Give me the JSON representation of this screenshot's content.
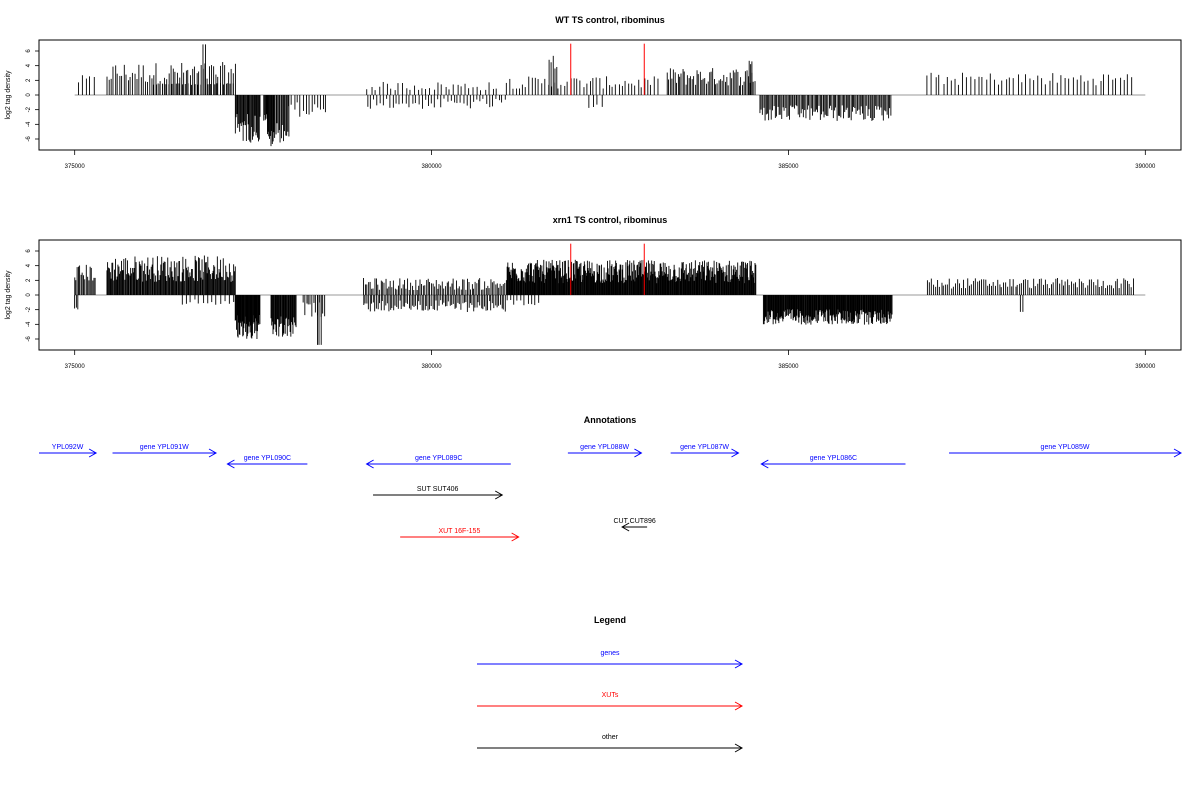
{
  "chart_data": [
    {
      "type": "bar",
      "title": "WT TS control, ribominus",
      "xlabel": "",
      "ylabel": "log2 tag density",
      "xlim": [
        374500,
        390500
      ],
      "ylim": [
        -7.5,
        7.5
      ],
      "x_ticks": [
        375000,
        380000,
        385000,
        390000
      ],
      "y_ticks": [
        -6,
        -4,
        -2,
        0,
        2,
        4,
        6
      ],
      "tick_labels_x": [
        "375000",
        "380000",
        "385000",
        "390000"
      ],
      "tick_labels_y": [
        "-6",
        "-4",
        "-2",
        "0",
        "2",
        "4",
        "6"
      ],
      "baseline_range": [
        375000,
        390000
      ],
      "grid": false,
      "markers": {
        "color": "#ff0000",
        "x": [
          381950,
          382980
        ],
        "height": 7
      },
      "segments": [
        {
          "start": 375050,
          "end": 375300,
          "sign": 1,
          "step": 55,
          "amp": 2.0,
          "sp": 0.35
        },
        {
          "start": 375450,
          "end": 377250,
          "sign": 1,
          "step": 30,
          "amp": 3.0,
          "sp": 0.5
        },
        {
          "start": 376100,
          "end": 377250,
          "sign": 1,
          "step": 45,
          "amp": 1.5,
          "sp": 0.08
        },
        {
          "start": 376800,
          "end": 376830,
          "sign": 1,
          "step": 30,
          "amp": 6.9,
          "sp": 0.0
        },
        {
          "start": 377250,
          "end": 377600,
          "sign": -1,
          "step": 12,
          "amp": 4.5,
          "sp": 0.45
        },
        {
          "start": 377650,
          "end": 377700,
          "sign": -1,
          "step": 10,
          "amp": 3.0,
          "sp": 0.2
        },
        {
          "start": 377700,
          "end": 377800,
          "sign": -1,
          "step": 10,
          "amp": 6.0,
          "sp": 0.2
        },
        {
          "start": 377820,
          "end": 378000,
          "sign": -1,
          "step": 15,
          "amp": 5.0,
          "sp": 0.3
        },
        {
          "start": 378000,
          "end": 378550,
          "sign": -1,
          "step": 40,
          "amp": 2.0,
          "sp": 0.5
        },
        {
          "start": 379100,
          "end": 380950,
          "sign": 1,
          "step": 55,
          "amp": 1.2,
          "sp": 0.5
        },
        {
          "start": 379100,
          "end": 381050,
          "sign": -1,
          "step": 45,
          "amp": 1.2,
          "sp": 0.6
        },
        {
          "start": 381050,
          "end": 383200,
          "sign": 1,
          "step": 45,
          "amp": 1.7,
          "sp": 0.5
        },
        {
          "start": 381650,
          "end": 381750,
          "sign": 1,
          "step": 25,
          "amp": 4.5,
          "sp": 0.2
        },
        {
          "start": 382200,
          "end": 382420,
          "sign": -1,
          "step": 60,
          "amp": 1.5,
          "sp": 0.3
        },
        {
          "start": 383300,
          "end": 384550,
          "sign": 1,
          "step": 22,
          "amp": 2.5,
          "sp": 0.5
        },
        {
          "start": 384450,
          "end": 384500,
          "sign": 1,
          "step": 20,
          "amp": 4.5,
          "sp": 0.1
        },
        {
          "start": 384600,
          "end": 386450,
          "sign": -1,
          "step": 18,
          "amp": 2.5,
          "sp": 0.45
        },
        {
          "start": 386950,
          "end": 389850,
          "sign": 1,
          "step": 55,
          "amp": 2.2,
          "sp": 0.4
        }
      ]
    },
    {
      "type": "bar",
      "title": "xrn1 TS control, ribominus",
      "xlabel": "",
      "ylabel": "log2 tag density",
      "xlim": [
        374500,
        390500
      ],
      "ylim": [
        -7.5,
        7.5
      ],
      "x_ticks": [
        375000,
        380000,
        385000,
        390000
      ],
      "y_ticks": [
        -6,
        -4,
        -2,
        0,
        2,
        4,
        6
      ],
      "tick_labels_x": [
        "375000",
        "380000",
        "385000",
        "390000"
      ],
      "tick_labels_y": [
        "-6",
        "-4",
        "-2",
        "0",
        "2",
        "4",
        "6"
      ],
      "baseline_range": [
        375000,
        390000
      ],
      "grid": false,
      "markers": {
        "color": "#ff0000",
        "x": [
          381950,
          382980
        ],
        "height": 7
      },
      "segments": [
        {
          "start": 375000,
          "end": 375300,
          "sign": 1,
          "step": 18,
          "amp": 3.0,
          "sp": 0.4
        },
        {
          "start": 375000,
          "end": 375050,
          "sign": -1,
          "step": 20,
          "amp": 1.8,
          "sp": 0.1
        },
        {
          "start": 375450,
          "end": 377250,
          "sign": 1,
          "step": 12,
          "amp": 3.6,
          "sp": 0.5
        },
        {
          "start": 376500,
          "end": 377250,
          "sign": -1,
          "step": 60,
          "amp": 1.0,
          "sp": 0.4
        },
        {
          "start": 377250,
          "end": 377600,
          "sign": -1,
          "step": 8,
          "amp": 4.5,
          "sp": 0.4
        },
        {
          "start": 377750,
          "end": 378100,
          "sign": -1,
          "step": 10,
          "amp": 4.5,
          "sp": 0.35
        },
        {
          "start": 378200,
          "end": 378500,
          "sign": -1,
          "step": 25,
          "amp": 2.0,
          "sp": 0.5
        },
        {
          "start": 378400,
          "end": 378450,
          "sign": -1,
          "step": 25,
          "amp": 6.8,
          "sp": 0.0
        },
        {
          "start": 379050,
          "end": 381050,
          "sign": 1,
          "step": 22,
          "amp": 1.5,
          "sp": 0.55
        },
        {
          "start": 379050,
          "end": 381050,
          "sign": -1,
          "step": 22,
          "amp": 1.5,
          "sp": 0.55
        },
        {
          "start": 381050,
          "end": 384550,
          "sign": 1,
          "step": 9,
          "amp": 3.2,
          "sp": 0.5
        },
        {
          "start": 381050,
          "end": 381500,
          "sign": -1,
          "step": 50,
          "amp": 1.0,
          "sp": 0.4
        },
        {
          "start": 384650,
          "end": 386450,
          "sign": -1,
          "step": 9,
          "amp": 3.0,
          "sp": 0.35
        },
        {
          "start": 386950,
          "end": 389850,
          "sign": 1,
          "step": 28,
          "amp": 1.6,
          "sp": 0.45
        },
        {
          "start": 388250,
          "end": 388300,
          "sign": -1,
          "step": 30,
          "amp": 2.3,
          "sp": 0.0
        }
      ]
    }
  ],
  "annotations": {
    "title": "Annotations",
    "items": [
      {
        "label": "YPL092W",
        "start": 374500,
        "end": 375300,
        "dir": "right",
        "track": 0,
        "color": "#0000ff"
      },
      {
        "label": "gene YPL091W",
        "start": 375530,
        "end": 376980,
        "dir": "right",
        "track": 0,
        "color": "#0000ff"
      },
      {
        "label": "gene YPL090C",
        "start": 377140,
        "end": 378260,
        "dir": "left",
        "track": 1,
        "color": "#0000ff"
      },
      {
        "label": "gene YPL089C",
        "start": 379090,
        "end": 381110,
        "dir": "left",
        "track": 1,
        "color": "#0000ff"
      },
      {
        "label": "gene YPL088W",
        "start": 381910,
        "end": 382940,
        "dir": "right",
        "track": 0,
        "color": "#0000ff"
      },
      {
        "label": "gene YPL087W",
        "start": 383350,
        "end": 384300,
        "dir": "right",
        "track": 0,
        "color": "#0000ff"
      },
      {
        "label": "gene YPL086C",
        "start": 384620,
        "end": 386640,
        "dir": "left",
        "track": 1,
        "color": "#0000ff"
      },
      {
        "label": "gene YPL085W",
        "start": 387250,
        "end": 390500,
        "dir": "right",
        "track": 0,
        "color": "#0000ff"
      },
      {
        "label": "SUT SUT406",
        "start": 379180,
        "end": 380990,
        "dir": "right",
        "track": 2,
        "color": "#000000"
      },
      {
        "label": "CUT CUT896",
        "start": 382670,
        "end": 383020,
        "dir": "left",
        "track": 3,
        "color": "#000000"
      },
      {
        "label": "XUT 16F-155",
        "start": 379560,
        "end": 381220,
        "dir": "right",
        "track": 4,
        "color": "#ff0000"
      }
    ]
  },
  "legend": {
    "title": "Legend",
    "items": [
      {
        "label": "genes",
        "color": "#0000ff"
      },
      {
        "label": "XUTs",
        "color": "#ff0000"
      },
      {
        "label": "other",
        "color": "#000000"
      }
    ]
  }
}
